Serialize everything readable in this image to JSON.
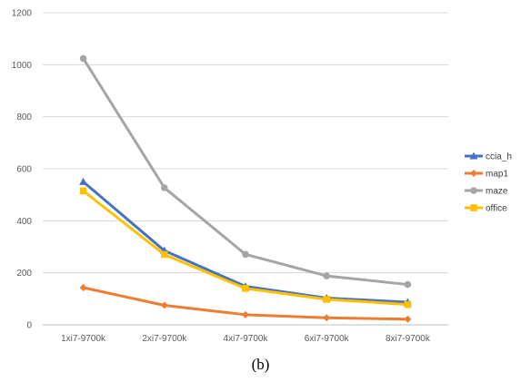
{
  "chart_data": {
    "type": "line",
    "categories": [
      "1xi7-9700k",
      "2xi7-9700k",
      "4xi7-9700k",
      "6xi7-9700k",
      "8xi7-9700k"
    ],
    "ylim": [
      0,
      1200
    ],
    "yticks": [
      0,
      200,
      400,
      600,
      800,
      1000,
      1200
    ],
    "grid": true,
    "legend_position": "right",
    "series": [
      {
        "name": "ccia_h",
        "color": "#4472C4",
        "marker": "triangle",
        "values": [
          550,
          285,
          148,
          103,
          87
        ]
      },
      {
        "name": "map1",
        "color": "#ED7D31",
        "marker": "diamond",
        "values": [
          143,
          75,
          39,
          27,
          22
        ]
      },
      {
        "name": "maze",
        "color": "#A5A5A5",
        "marker": "circle",
        "values": [
          1024,
          527,
          271,
          188,
          155
        ]
      },
      {
        "name": "office",
        "color": "#FFC000",
        "marker": "square",
        "values": [
          515,
          270,
          140,
          98,
          78
        ]
      }
    ]
  },
  "caption": "(b)"
}
